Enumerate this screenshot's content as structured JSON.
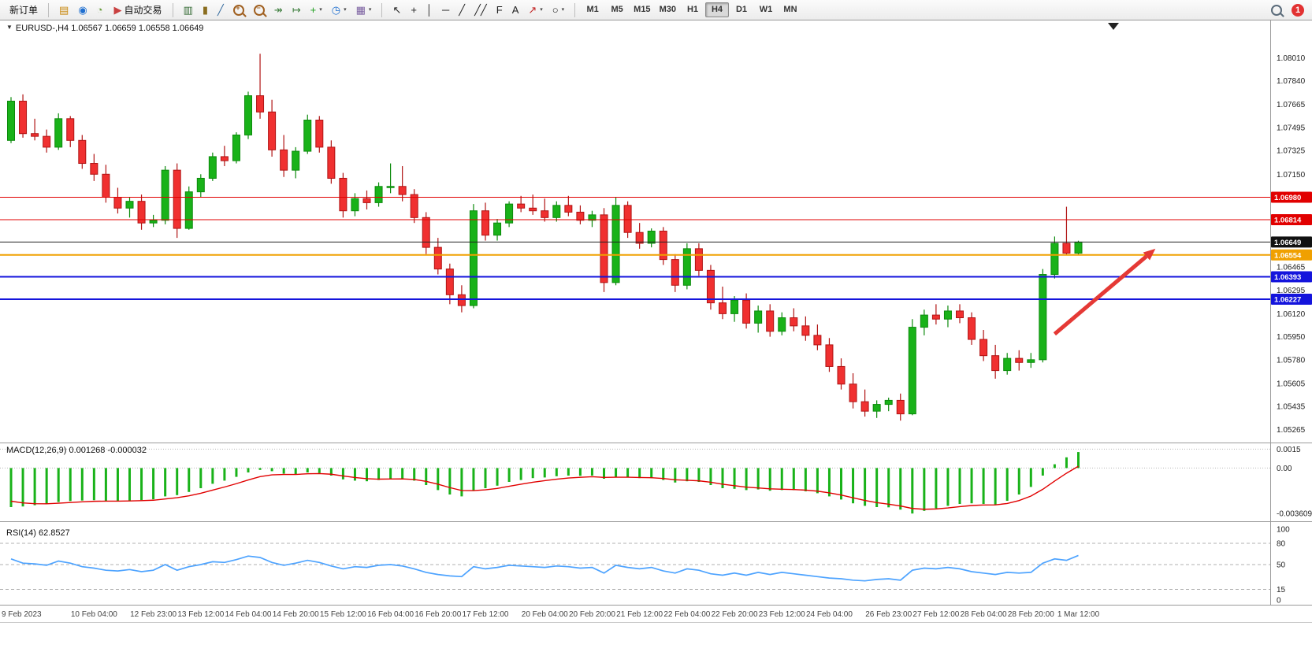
{
  "toolbar": {
    "new_order_label": "新订单",
    "autotrading_label": "自动交易",
    "notification_count": "1",
    "left_icons": [
      {
        "name": "market-watch-icon",
        "glyph": "▤",
        "color": "#c8860a"
      },
      {
        "name": "data-window-icon",
        "glyph": "◉",
        "color": "#1f6fd0"
      },
      {
        "name": "navigator-icon",
        "glyph": "◔",
        "color": "#6b9e3f"
      }
    ],
    "autotrading_icon": {
      "name": "autotrading-icon",
      "glyph": "▶",
      "color": "#c94040"
    },
    "tool_icons": [
      {
        "name": "bars-chart-icon",
        "glyph": "▥",
        "color": "#356b35"
      },
      {
        "name": "candlestick-chart-icon",
        "glyph": "▮",
        "color": "#8a6d1f"
      },
      {
        "name": "line-chart-icon",
        "glyph": "╱",
        "color": "#356b9e"
      },
      {
        "name": "zoom-in-icon",
        "glyph": "+",
        "color": "#a06020",
        "mag": true
      },
      {
        "name": "zoom-out-icon",
        "glyph": "−",
        "color": "#a06020",
        "mag": true
      },
      {
        "name": "auto-scroll-icon",
        "glyph": "↠",
        "color": "#3f7f3f"
      },
      {
        "name": "chart-shift-icon",
        "glyph": "↦",
        "color": "#3f7f3f"
      },
      {
        "name": "indicators-add-icon",
        "glyph": "+",
        "color": "#1d9e1d",
        "caret": true
      },
      {
        "name": "periods-icon",
        "glyph": "◷",
        "color": "#1f6fd0",
        "caret": true
      },
      {
        "name": "templates-icon",
        "glyph": "▦",
        "color": "#7a5fa0",
        "caret": true
      }
    ],
    "draw_icons": [
      {
        "name": "cursor-icon",
        "glyph": "↖",
        "color": "#222222"
      },
      {
        "name": "crosshair-icon",
        "glyph": "+",
        "color": "#222222"
      },
      {
        "name": "vertical-line-icon",
        "glyph": "│",
        "color": "#222222"
      },
      {
        "name": "horizontal-line-icon",
        "glyph": "─",
        "color": "#222222"
      },
      {
        "name": "trendline-icon",
        "glyph": "╱",
        "color": "#222222"
      },
      {
        "name": "channel-icon",
        "glyph": "╱╱",
        "color": "#222222"
      },
      {
        "name": "fibonacci-icon",
        "glyph": "F",
        "color": "#222222"
      },
      {
        "name": "text-icon",
        "glyph": "A",
        "color": "#222222"
      },
      {
        "name": "arrows-icon",
        "glyph": "↗",
        "color": "#c22222",
        "caret": true
      },
      {
        "name": "shapes-icon",
        "glyph": "○",
        "color": "#222222",
        "caret": true
      }
    ],
    "timeframes": [
      "M1",
      "M5",
      "M15",
      "M30",
      "H1",
      "H4",
      "D1",
      "W1",
      "MN"
    ],
    "active_timeframe": "H4"
  },
  "panes": {
    "main_title": "EURUSD-,H4 1.06567 1.06659 1.06558 1.06649",
    "macd_label": "MACD(12,26,9) 0.001268 -0.000032",
    "rsi_label": "RSI(14) 62.8527"
  },
  "chart_data": [
    {
      "type": "candlestick",
      "title": "EURUSD-,H4",
      "symbol": "EURUSD",
      "timeframe": "H4",
      "current_ohlc": {
        "open": 1.06567,
        "high": 1.06659,
        "low": 1.06558,
        "close": 1.06649
      },
      "ylim": [
        1.0518,
        1.0828
      ],
      "up_color": "#19b219",
      "down_color": "#f03030",
      "y_ticks": [
        1.0801,
        1.0784,
        1.07665,
        1.07495,
        1.07325,
        1.0715,
        1.0698,
        1.0681,
        1.0664,
        1.06465,
        1.06295,
        1.0612,
        1.0595,
        1.0578,
        1.05605,
        1.05435,
        1.05265
      ],
      "x_labels": [
        {
          "i": 0,
          "label": "9 Feb 2023"
        },
        {
          "i": 7,
          "label": "10 Feb 04:00"
        },
        {
          "i": 12,
          "label": "12 Feb 23:00"
        },
        {
          "i": 16,
          "label": "13 Feb 12:00"
        },
        {
          "i": 20,
          "label": "14 Feb 04:00"
        },
        {
          "i": 24,
          "label": "14 Feb 20:00"
        },
        {
          "i": 28,
          "label": "15 Feb 12:00"
        },
        {
          "i": 32,
          "label": "16 Feb 04:00"
        },
        {
          "i": 36,
          "label": "16 Feb 20:00"
        },
        {
          "i": 40,
          "label": "17 Feb 12:00"
        },
        {
          "i": 45,
          "label": "20 Feb 04:00"
        },
        {
          "i": 49,
          "label": "20 Feb 20:00"
        },
        {
          "i": 53,
          "label": "21 Feb 12:00"
        },
        {
          "i": 57,
          "label": "22 Feb 04:00"
        },
        {
          "i": 61,
          "label": "22 Feb 20:00"
        },
        {
          "i": 65,
          "label": "23 Feb 12:00"
        },
        {
          "i": 69,
          "label": "24 Feb 04:00"
        },
        {
          "i": 74,
          "label": "26 Feb 23:00"
        },
        {
          "i": 78,
          "label": "27 Feb 12:00"
        },
        {
          "i": 82,
          "label": "28 Feb 04:00"
        },
        {
          "i": 86,
          "label": "28 Feb 20:00"
        },
        {
          "i": 90,
          "label": "1 Mar 12:00"
        }
      ],
      "open": [
        1.074,
        1.0769,
        1.0745,
        1.0743,
        1.0735,
        1.0756,
        1.074,
        1.0723,
        1.0715,
        1.0698,
        1.069,
        1.0695,
        1.0679,
        1.0681,
        1.0718,
        1.0675,
        1.0702,
        1.0712,
        1.0728,
        1.0725,
        1.0744,
        1.0773,
        1.0761,
        1.0733,
        1.0718,
        1.0732,
        1.0755,
        1.0735,
        1.0712,
        1.0688,
        1.0697,
        1.0694,
        1.0706,
        1.0706,
        1.07,
        1.0683,
        1.0661,
        1.0645,
        1.0626,
        1.0618,
        1.0688,
        1.067,
        1.0679,
        1.0693,
        1.069,
        1.0688,
        1.0683,
        1.0692,
        1.0687,
        1.0681,
        1.0685,
        1.0635,
        1.0692,
        1.0672,
        1.0664,
        1.0673,
        1.0652,
        1.0633,
        1.066,
        1.0644,
        1.062,
        1.0612,
        1.0622,
        1.0605,
        1.0614,
        1.0599,
        1.0609,
        1.0603,
        1.0596,
        1.0589,
        1.0573,
        1.056,
        1.0547,
        1.054,
        1.0545,
        1.0548,
        1.0538,
        1.0602,
        1.0611,
        1.0608,
        1.0614,
        1.0609,
        1.0593,
        1.0581,
        1.057,
        1.0579,
        1.0576,
        1.0578,
        1.0641,
        1.0664,
        1.06567
      ],
      "high": [
        1.0772,
        1.0774,
        1.0756,
        1.0748,
        1.076,
        1.0758,
        1.0744,
        1.073,
        1.0722,
        1.0705,
        1.0698,
        1.07,
        1.0685,
        1.0721,
        1.0723,
        1.0706,
        1.0715,
        1.0731,
        1.0736,
        1.0746,
        1.0776,
        1.0804,
        1.077,
        1.0744,
        1.0735,
        1.0759,
        1.0758,
        1.074,
        1.0716,
        1.0701,
        1.0703,
        1.0709,
        1.0723,
        1.0721,
        1.0704,
        1.0687,
        1.0668,
        1.0649,
        1.0633,
        1.0693,
        1.0694,
        1.0682,
        1.0695,
        1.0699,
        1.07,
        1.0697,
        1.0695,
        1.0699,
        1.0692,
        1.0688,
        1.069,
        1.0698,
        1.0695,
        1.0679,
        1.0675,
        1.0676,
        1.0656,
        1.0664,
        1.0664,
        1.0648,
        1.0632,
        1.0625,
        1.0627,
        1.0618,
        1.0619,
        1.0613,
        1.0616,
        1.061,
        1.0604,
        1.0594,
        1.0579,
        1.0568,
        1.0556,
        1.0548,
        1.055,
        1.0553,
        1.0608,
        1.0615,
        1.0619,
        1.0618,
        1.0619,
        1.0613,
        1.06,
        1.0589,
        1.0583,
        1.0585,
        1.0583,
        1.0645,
        1.0669,
        1.0691,
        1.06659
      ],
      "low": [
        1.0738,
        1.0742,
        1.074,
        1.0731,
        1.0733,
        1.0735,
        1.0719,
        1.071,
        1.0694,
        1.0686,
        1.0683,
        1.0674,
        1.0676,
        1.0678,
        1.0668,
        1.0674,
        1.0698,
        1.071,
        1.0721,
        1.0723,
        1.0741,
        1.0756,
        1.0728,
        1.0713,
        1.0712,
        1.073,
        1.0731,
        1.0708,
        1.0683,
        1.0684,
        1.0689,
        1.0691,
        1.0701,
        1.0695,
        1.0679,
        1.0656,
        1.0641,
        1.0619,
        1.0613,
        1.0616,
        1.0666,
        1.0666,
        1.0676,
        1.0687,
        1.0685,
        1.068,
        1.068,
        1.0684,
        1.0678,
        1.0676,
        1.0628,
        1.0633,
        1.0668,
        1.066,
        1.0661,
        1.0648,
        1.0628,
        1.063,
        1.064,
        1.0615,
        1.0608,
        1.0606,
        1.0601,
        1.0598,
        1.0595,
        1.0596,
        1.0599,
        1.0592,
        1.0585,
        1.0569,
        1.0556,
        1.0542,
        1.0536,
        1.0535,
        1.054,
        1.0533,
        1.0537,
        1.0596,
        1.0604,
        1.0602,
        1.0605,
        1.0589,
        1.0577,
        1.0564,
        1.0567,
        1.057,
        1.0572,
        1.0576,
        1.0638,
        1.0655,
        1.06558
      ],
      "close": [
        1.0769,
        1.0745,
        1.0743,
        1.0735,
        1.0756,
        1.074,
        1.0723,
        1.0715,
        1.0698,
        1.069,
        1.0695,
        1.0679,
        1.0681,
        1.0718,
        1.0675,
        1.0702,
        1.0712,
        1.0728,
        1.0725,
        1.0744,
        1.0773,
        1.0761,
        1.0733,
        1.0718,
        1.0732,
        1.0755,
        1.0735,
        1.0712,
        1.0688,
        1.0697,
        1.0694,
        1.0706,
        1.0706,
        1.07,
        1.0683,
        1.0661,
        1.0645,
        1.0626,
        1.0618,
        1.0688,
        1.067,
        1.0679,
        1.0693,
        1.069,
        1.0688,
        1.0683,
        1.0692,
        1.0687,
        1.0681,
        1.0685,
        1.0635,
        1.0692,
        1.0672,
        1.0664,
        1.0673,
        1.0652,
        1.0633,
        1.066,
        1.0644,
        1.062,
        1.0612,
        1.0622,
        1.0605,
        1.0614,
        1.0599,
        1.0609,
        1.0603,
        1.0596,
        1.0589,
        1.0573,
        1.056,
        1.0547,
        1.054,
        1.0545,
        1.0548,
        1.0538,
        1.0602,
        1.0611,
        1.0608,
        1.0614,
        1.0609,
        1.0593,
        1.0581,
        1.057,
        1.0579,
        1.0576,
        1.0578,
        1.0641,
        1.0664,
        1.06567,
        1.06649
      ],
      "hlines": [
        {
          "name": "resistance-line-upper",
          "price": 1.0698,
          "color": "#e10000",
          "width": 1,
          "badge": "1.06980",
          "badge_bg": "#e10000"
        },
        {
          "name": "resistance-line-lower",
          "price": 1.06814,
          "color": "#e10000",
          "width": 1,
          "badge": "1.06814",
          "badge_bg": "#e10000"
        },
        {
          "name": "bid-price-line",
          "price": 1.06649,
          "color": "#222222",
          "width": 1,
          "badge": "1.06649",
          "badge_bg": "#111111"
        },
        {
          "name": "support-line-orange",
          "price": 1.06554,
          "color": "#f0a000",
          "width": 2,
          "badge": "1.06554",
          "badge_bg": "#f0a000"
        },
        {
          "name": "support-line-blue-upper",
          "price": 1.06393,
          "color": "#1414dc",
          "width": 2,
          "badge": "1.06393",
          "badge_bg": "#1414dc"
        },
        {
          "name": "support-line-blue-lower",
          "price": 1.06227,
          "color": "#1414dc",
          "width": 2,
          "badge": "1.06227",
          "badge_bg": "#1414dc"
        }
      ],
      "arrow": {
        "from_index": 88,
        "from_price": 1.0597,
        "to_index": 96.5,
        "to_price": 1.066,
        "color": "#e53935"
      }
    },
    {
      "type": "bar",
      "title": "MACD(12,26,9)",
      "current_value": 0.001268,
      "signal_current": -3.2e-05,
      "ylim": [
        -0.00385,
        0.00165
      ],
      "bar_color": "#19b219",
      "signal_color": "#e10000",
      "y_ticks": [
        {
          "v": 0.0015,
          "label": "0.0015",
          "grid": true
        },
        {
          "v": 0,
          "label": "0.00",
          "grid": true
        },
        {
          "v": -0.003609,
          "label": "-0.003609",
          "grid": false
        }
      ],
      "values": [
        -0.0031,
        -0.00305,
        -0.00295,
        -0.00285,
        -0.0027,
        -0.00262,
        -0.00258,
        -0.00255,
        -0.0026,
        -0.00262,
        -0.00258,
        -0.00255,
        -0.00248,
        -0.00225,
        -0.00215,
        -0.0019,
        -0.0016,
        -0.00125,
        -0.001,
        -0.0007,
        -0.00035,
        -0.00015,
        -0.00025,
        -0.00045,
        -0.0005,
        -0.00035,
        -0.0004,
        -0.0006,
        -0.0009,
        -0.001,
        -0.00105,
        -0.00095,
        -0.00085,
        -0.00085,
        -0.001,
        -0.00135,
        -0.00175,
        -0.0021,
        -0.00225,
        -0.0018,
        -0.0016,
        -0.0014,
        -0.0011,
        -0.00095,
        -0.0008,
        -0.00075,
        -0.00065,
        -0.0006,
        -0.00062,
        -0.0006,
        -0.00085,
        -0.0007,
        -0.00072,
        -0.0008,
        -0.0008,
        -0.00095,
        -0.00115,
        -0.00105,
        -0.0011,
        -0.00135,
        -0.0016,
        -0.00165,
        -0.00175,
        -0.0017,
        -0.0018,
        -0.00175,
        -0.00175,
        -0.00185,
        -0.002,
        -0.00225,
        -0.0025,
        -0.0028,
        -0.003,
        -0.0031,
        -0.00312,
        -0.0033,
        -0.00361,
        -0.0034,
        -0.0032,
        -0.003,
        -0.00285,
        -0.0028,
        -0.00285,
        -0.0029,
        -0.0026,
        -0.0021,
        -0.0015,
        -0.0006,
        0.0003,
        0.00085,
        0.00127
      ]
    },
    {
      "type": "line",
      "title": "RSI(14)",
      "current_value": 62.8527,
      "ylim": [
        0,
        100
      ],
      "line_color": "#4da3ff",
      "levels": [
        80,
        50,
        15
      ],
      "y_ticks": [
        {
          "v": 100,
          "label": "100"
        },
        {
          "v": 80,
          "label": "80"
        },
        {
          "v": 50,
          "label": "50"
        },
        {
          "v": 15,
          "label": "15"
        },
        {
          "v": 0,
          "label": "0"
        }
      ],
      "values": [
        58,
        52,
        51,
        49,
        55,
        52,
        47,
        45,
        42,
        41,
        43,
        40,
        42,
        50,
        42,
        47,
        50,
        54,
        53,
        57,
        62,
        60,
        53,
        49,
        52,
        56,
        53,
        48,
        44,
        47,
        46,
        49,
        50,
        48,
        44,
        39,
        36,
        34,
        33,
        47,
        44,
        46,
        49,
        48,
        47,
        46,
        48,
        47,
        45,
        46,
        38,
        49,
        46,
        44,
        46,
        41,
        38,
        44,
        42,
        37,
        35,
        38,
        35,
        39,
        36,
        39,
        37,
        35,
        33,
        31,
        30,
        28,
        27,
        29,
        30,
        28,
        42,
        45,
        44,
        46,
        44,
        40,
        38,
        36,
        39,
        38,
        39,
        52,
        58,
        56,
        62.85
      ]
    }
  ]
}
